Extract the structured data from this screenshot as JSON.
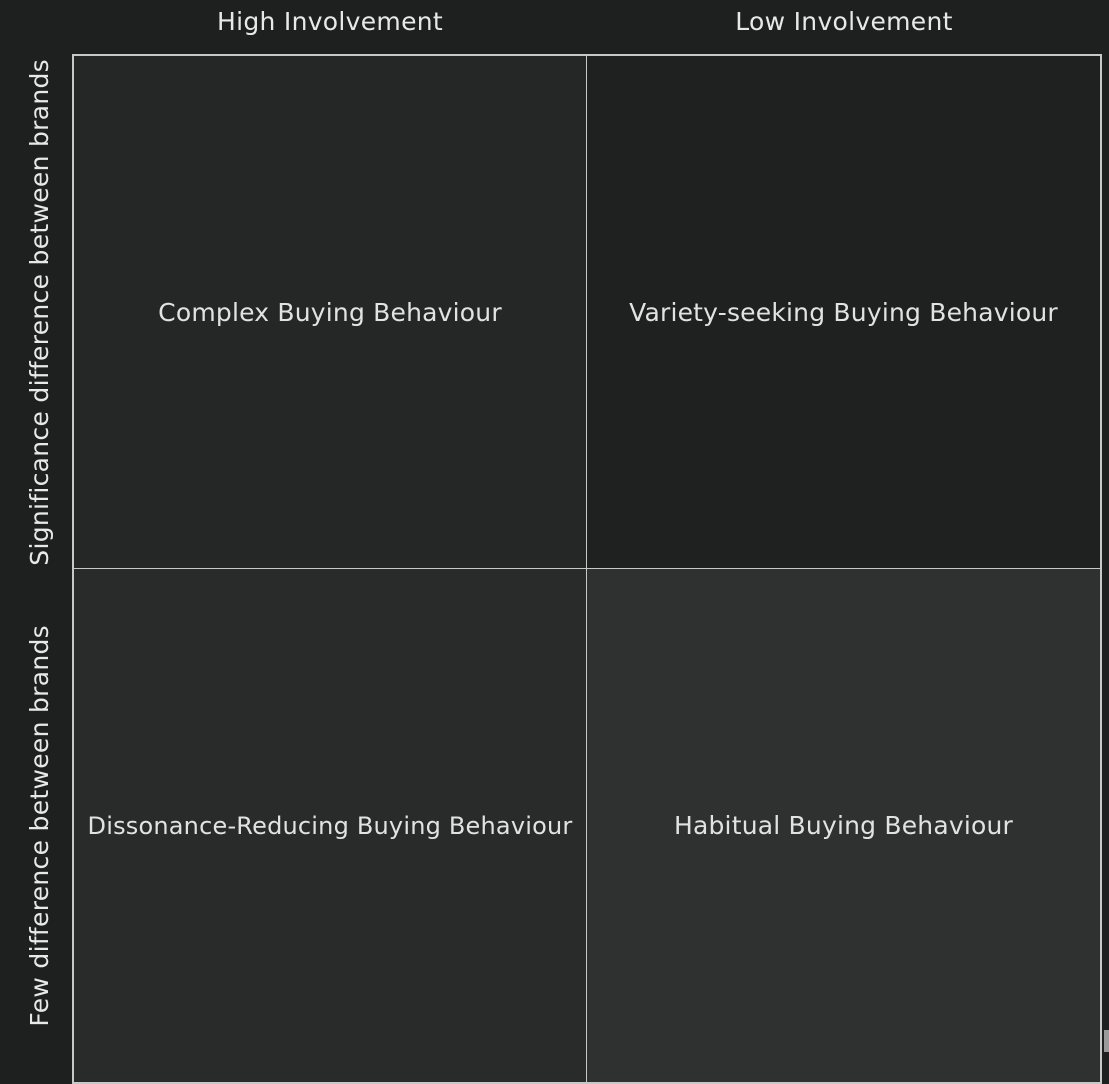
{
  "columns": {
    "high": "High Involvement",
    "low": "Low Involvement"
  },
  "rows": {
    "significant": "Significance difference between brands",
    "few": "Few difference between brands"
  },
  "cells": {
    "complex": "Complex Buying Behaviour",
    "variety": "Variety-seeking Buying Behaviour",
    "dissonance": "Dissonance-Reducing Buying Behaviour",
    "habitual": "Habitual Buying Behaviour"
  },
  "colors": {
    "background": "#1e1f1f",
    "grid_line": "#c8c8c8",
    "text": "#e6e6e6"
  }
}
